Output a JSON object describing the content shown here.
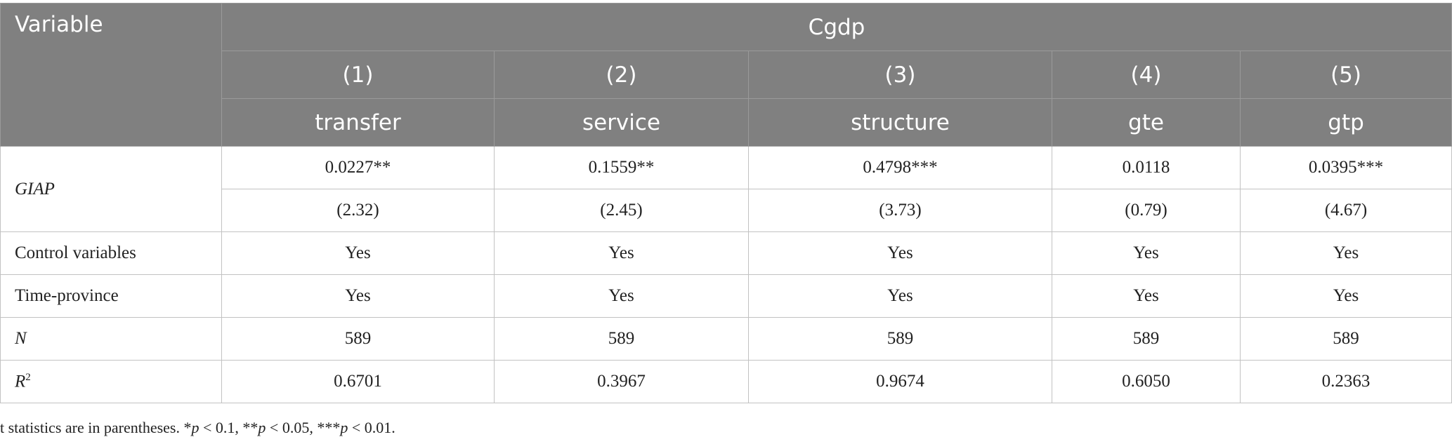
{
  "header": {
    "variable": "Variable",
    "group": "Cgdp",
    "columns": [
      {
        "num": "(1)",
        "name": "transfer"
      },
      {
        "num": "(2)",
        "name": "service"
      },
      {
        "num": "(3)",
        "name": "structure"
      },
      {
        "num": "(4)",
        "name": "gte"
      },
      {
        "num": "(5)",
        "name": "gtp"
      }
    ]
  },
  "rows": {
    "giap": {
      "label": "GIAP",
      "coefs": [
        "0.0227**",
        "0.1559**",
        "0.4798***",
        "0.0118",
        "0.0395***"
      ],
      "tstats": [
        "(2.32)",
        "(2.45)",
        "(3.73)",
        "(0.79)",
        "(4.67)"
      ]
    },
    "control": {
      "label": "Control variables",
      "values": [
        "Yes",
        "Yes",
        "Yes",
        "Yes",
        "Yes"
      ]
    },
    "time_province": {
      "label": "Time-province",
      "values": [
        "Yes",
        "Yes",
        "Yes",
        "Yes",
        "Yes"
      ]
    },
    "n": {
      "label": "N",
      "values": [
        "589",
        "589",
        "589",
        "589",
        "589"
      ]
    },
    "r2": {
      "label": "R",
      "label_sup": "2",
      "values": [
        "0.6701",
        "0.3967",
        "0.9674",
        "0.6050",
        "0.2363"
      ]
    }
  },
  "note": {
    "prefix": "t statistics are in parentheses. *",
    "p1": "p",
    "mid1": " < 0.1, **",
    "p2": "p",
    "mid2": " < 0.05, ***",
    "p3": "p",
    "suffix": " < 0.01."
  }
}
